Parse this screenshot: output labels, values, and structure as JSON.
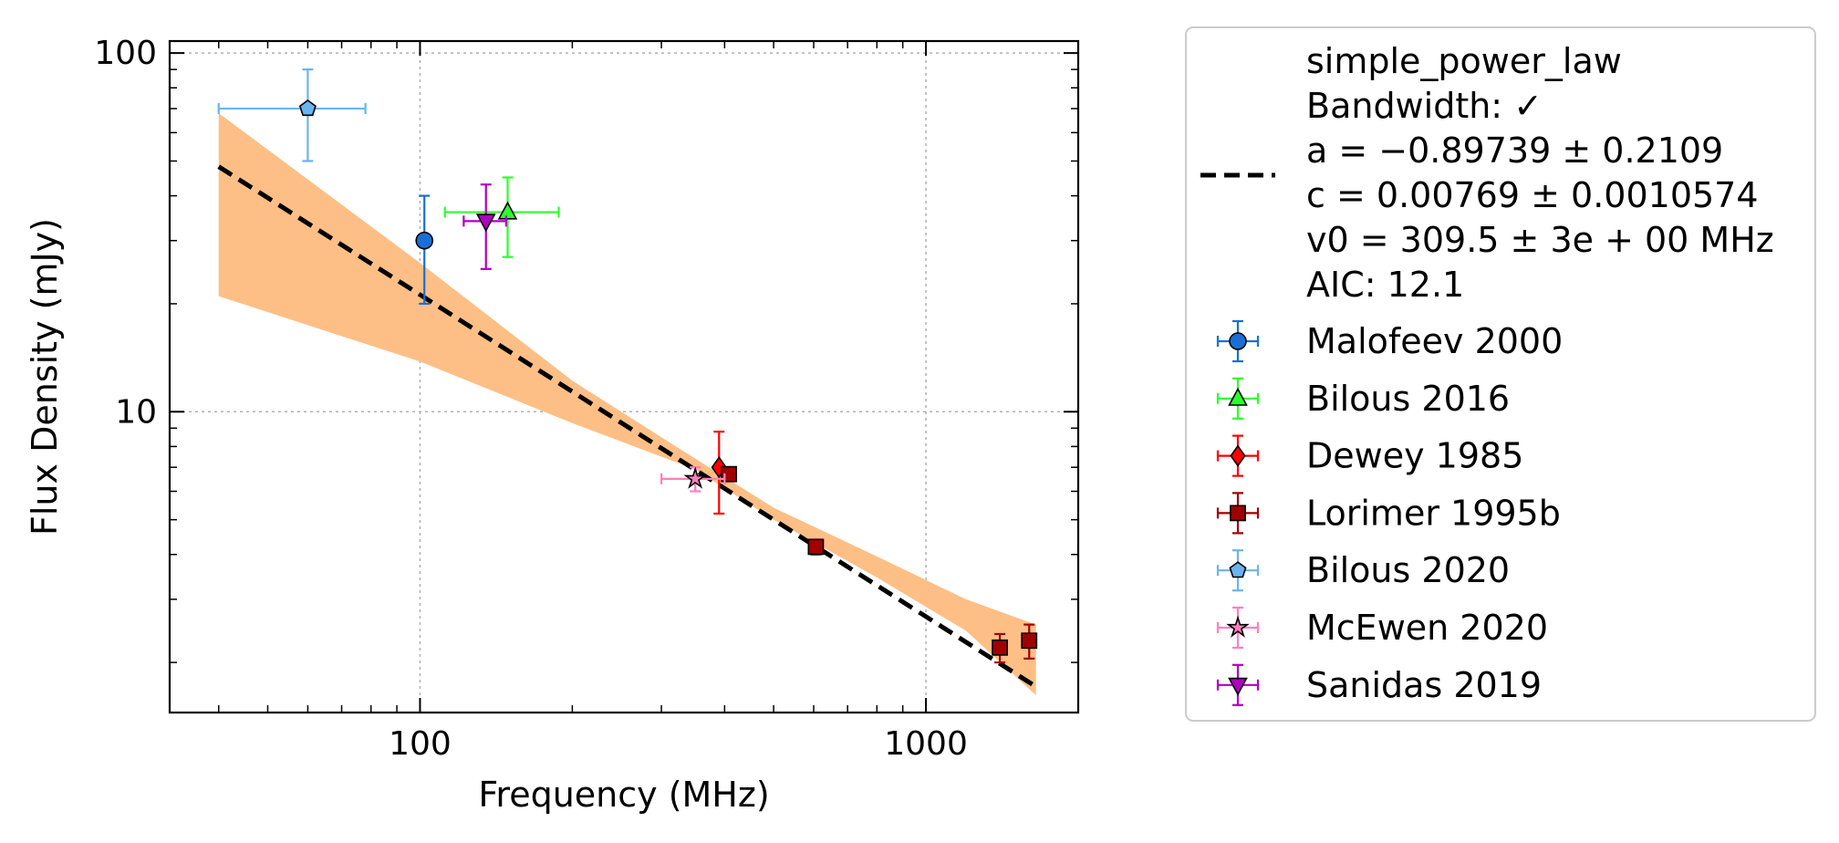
{
  "chart_data": {
    "type": "scatter",
    "xlabel": "Frequency (MHz)",
    "ylabel": "Flux Density (mJy)",
    "xscale": "log",
    "yscale": "log",
    "xlim": [
      32,
      2000
    ],
    "ylim": [
      1.45,
      108
    ],
    "x_ticks": [
      {
        "value": 100,
        "label": "100"
      },
      {
        "value": 1000,
        "label": "1000"
      }
    ],
    "y_ticks": [
      {
        "value": 10,
        "label": "10"
      },
      {
        "value": 100,
        "label": "100"
      }
    ],
    "grid": true,
    "legend_position": "outside-right",
    "fit": {
      "model": "simple_power_law",
      "legend_lines": [
        "simple_power_law",
        "Bandwidth: ✓",
        "a = −0.89739 ± 0.2109",
        "c = 0.00769 ± 0.0010574",
        "v0 = 309.5 ± 3e + 00 MHz",
        "AIC: 12.1"
      ],
      "a": -0.89739,
      "c": 0.00769,
      "v0": 309.5,
      "x_range": [
        40,
        1650
      ],
      "band": [
        {
          "x": 40,
          "lower": 21,
          "upper": 68
        },
        {
          "x": 100,
          "lower": 13.8,
          "upper": 26
        },
        {
          "x": 200,
          "lower": 9.3,
          "upper": 12.2
        },
        {
          "x": 350,
          "lower": 6.9,
          "upper": 7.4
        },
        {
          "x": 500,
          "lower": 5.0,
          "upper": 5.4
        },
        {
          "x": 800,
          "lower": 3.45,
          "upper": 3.95
        },
        {
          "x": 1200,
          "lower": 2.45,
          "upper": 3.0
        },
        {
          "x": 1650,
          "lower": 1.62,
          "upper": 2.55
        }
      ],
      "color": "#fdbf86",
      "line_color": "#000000"
    },
    "series": [
      {
        "name": "Malofeev 2000",
        "marker": "circle",
        "color": "#1a6fd6",
        "points": [
          {
            "x": 102,
            "y": 30,
            "xerr": [
              0,
              0
            ],
            "yerr": [
              10,
              10
            ]
          }
        ]
      },
      {
        "name": "Bilous 2016",
        "marker": "triangle-up",
        "color": "#2bff2b",
        "points": [
          {
            "x": 149,
            "y": 36,
            "xerr": [
              37,
              39
            ],
            "yerr": [
              9,
              9
            ]
          }
        ]
      },
      {
        "name": "Dewey 1985",
        "marker": "diamond",
        "color": "#ff0000",
        "points": [
          {
            "x": 390,
            "y": 7.0,
            "xerr": [
              0,
              0
            ],
            "yerr": [
              1.8,
              1.8
            ]
          }
        ]
      },
      {
        "name": "Lorimer 1995b",
        "marker": "square",
        "color": "#a00000",
        "points": [
          {
            "x": 408,
            "y": 6.7,
            "xerr": [
              0,
              0
            ],
            "yerr": [
              0.3,
              0.3
            ]
          },
          {
            "x": 606,
            "y": 4.2,
            "xerr": [
              0,
              0
            ],
            "yerr": [
              0.2,
              0.2
            ]
          },
          {
            "x": 1400,
            "y": 2.2,
            "xerr": [
              0,
              0
            ],
            "yerr": [
              0.2,
              0.2
            ]
          },
          {
            "x": 1600,
            "y": 2.3,
            "xerr": [
              0,
              0
            ],
            "yerr": [
              0.25,
              0.25
            ]
          }
        ]
      },
      {
        "name": "Bilous 2020",
        "marker": "pentagon",
        "color": "#6ab4f0",
        "points": [
          {
            "x": 60,
            "y": 70,
            "xerr": [
              20,
              18
            ],
            "yerr": [
              20,
              20
            ]
          }
        ]
      },
      {
        "name": "McEwen 2020",
        "marker": "star",
        "color": "#ff7fbf",
        "points": [
          {
            "x": 350,
            "y": 6.5,
            "xerr": [
              50,
              50
            ],
            "yerr": [
              0.5,
              0.5
            ]
          }
        ]
      },
      {
        "name": "Sanidas 2019",
        "marker": "triangle-down",
        "color": "#b000c0",
        "points": [
          {
            "x": 135,
            "y": 34,
            "xerr": [
              13,
              13
            ],
            "yerr": [
              9,
              9
            ]
          }
        ]
      }
    ]
  }
}
